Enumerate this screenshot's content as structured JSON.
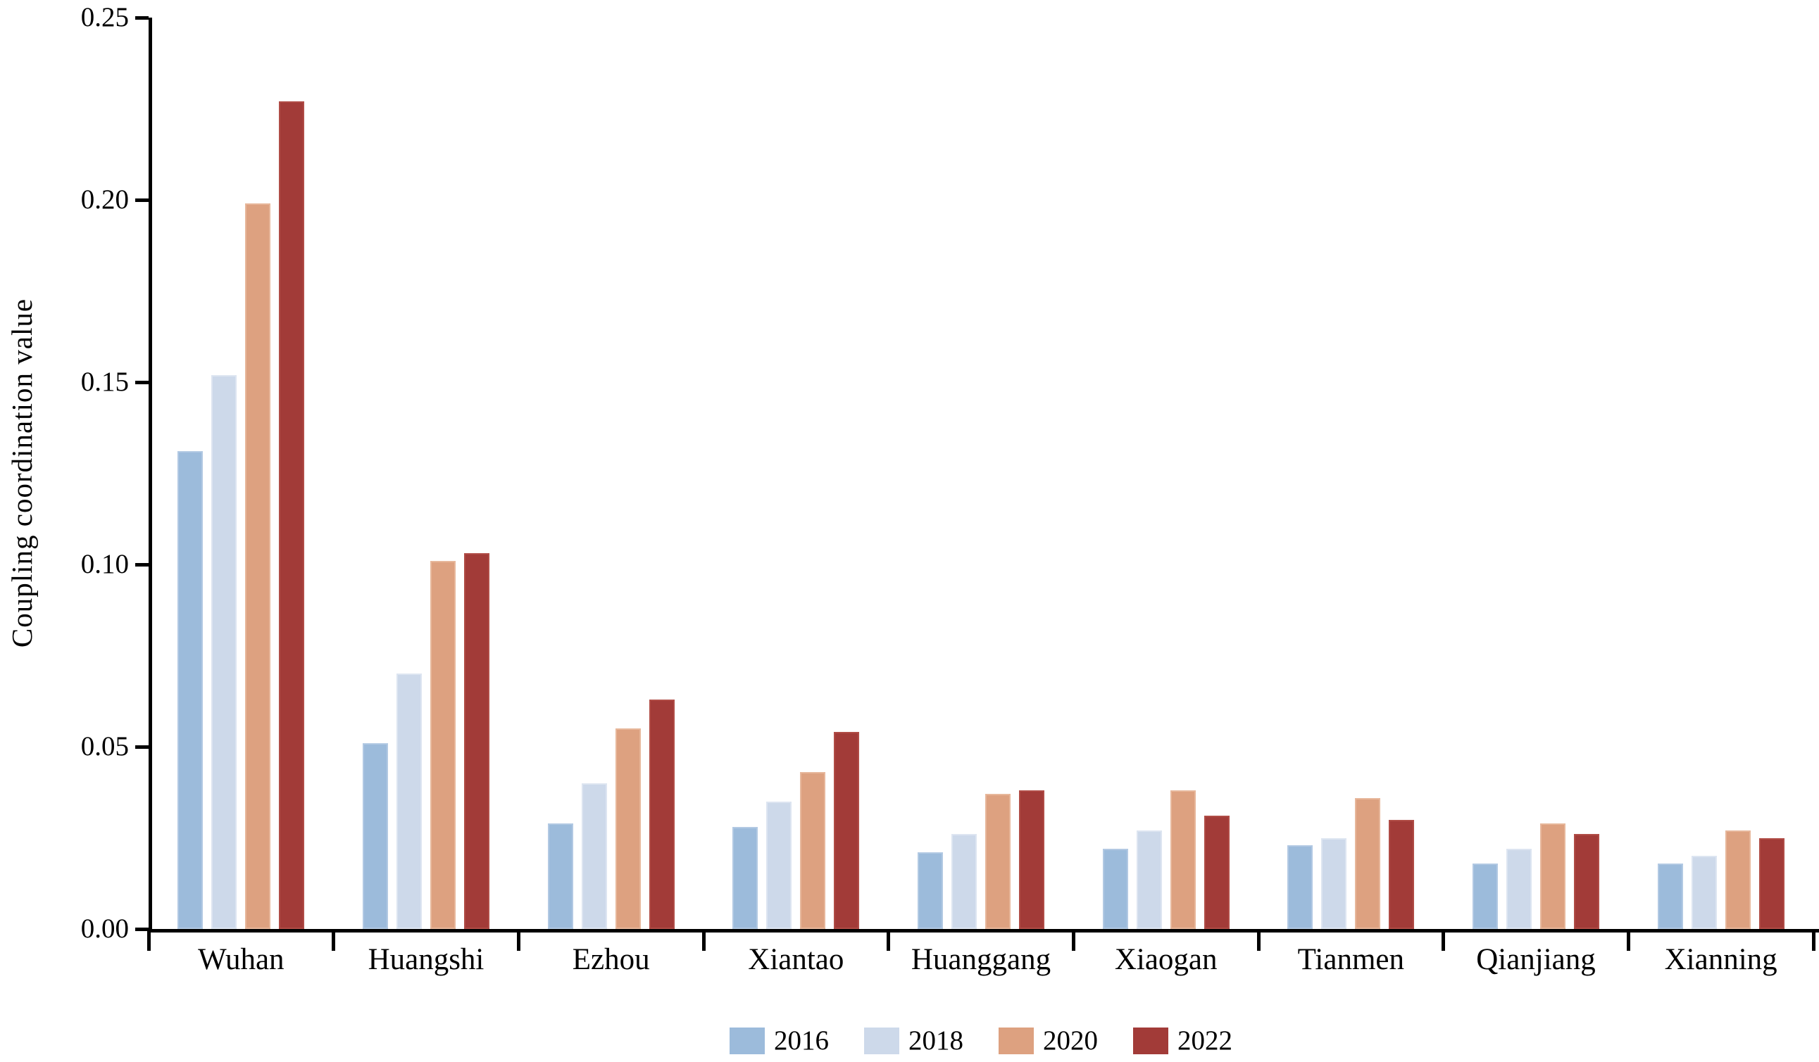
{
  "chart_data": {
    "type": "bar",
    "title": "",
    "ylabel": "Coupling coordination value",
    "xlabel": "",
    "ylim": [
      0,
      0.25
    ],
    "ytick_step": 0.05,
    "ytick_labels": [
      "0.00",
      "0.05",
      "0.10",
      "0.15",
      "0.20",
      "0.25"
    ],
    "grid": false,
    "legend_position": "bottom-center",
    "axis_color": "#000000",
    "background_color": "#ffffff",
    "categories": [
      "Wuhan",
      "Huangshi",
      "Ezhou",
      "Xiantao",
      "Huanggang",
      "Xiaogan",
      "Tianmen",
      "Qianjiang",
      "Xianning"
    ],
    "series": [
      {
        "name": "2016",
        "color": "#9CBBDB",
        "edge_color": "#B2C9E3",
        "values": [
          0.131,
          0.051,
          0.029,
          0.028,
          0.021,
          0.022,
          0.023,
          0.018,
          0.018
        ]
      },
      {
        "name": "2018",
        "color": "#CDD9EA",
        "edge_color": "#DDE5F1",
        "values": [
          0.152,
          0.07,
          0.04,
          0.035,
          0.026,
          0.027,
          0.025,
          0.022,
          0.02
        ]
      },
      {
        "name": "2020",
        "color": "#DDA180",
        "edge_color": "#E7B79B",
        "values": [
          0.199,
          0.101,
          0.055,
          0.043,
          0.037,
          0.038,
          0.036,
          0.029,
          0.027
        ]
      },
      {
        "name": "2022",
        "color": "#A23B38",
        "edge_color": "#B04C46",
        "values": [
          0.227,
          0.103,
          0.063,
          0.054,
          0.038,
          0.031,
          0.03,
          0.026,
          0.025
        ]
      }
    ]
  }
}
